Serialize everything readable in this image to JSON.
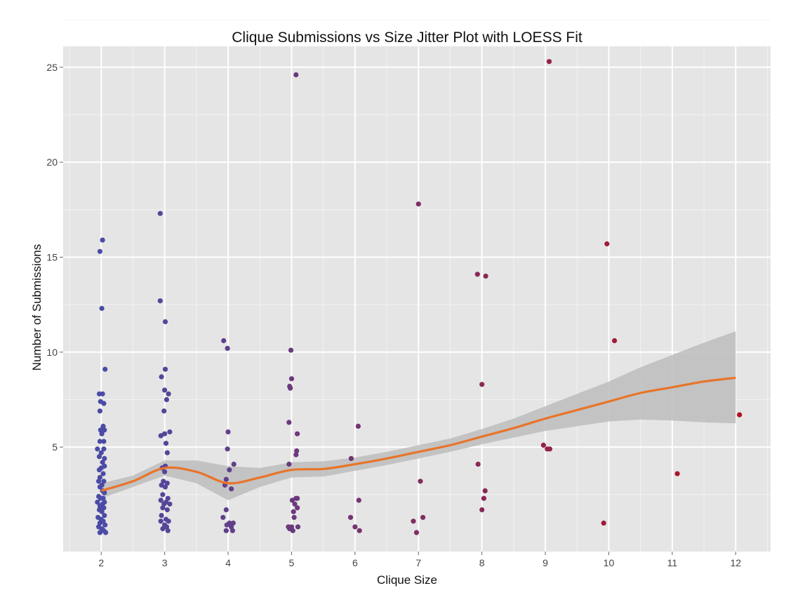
{
  "chart_data": {
    "type": "scatter",
    "title": "Clique Submissions vs Size Jitter Plot with LOESS Fit",
    "xlabel": "Clique Size",
    "ylabel": "Number of Submissions",
    "xlim": [
      1.4,
      12.55
    ],
    "ylim": [
      -0.5,
      26.1
    ],
    "x_ticks": [
      2,
      3,
      4,
      5,
      6,
      7,
      8,
      9,
      10,
      11,
      12
    ],
    "y_ticks": [
      5,
      10,
      15,
      20,
      25
    ],
    "grid": true,
    "legend": "none",
    "colors": {
      "panel": "#e5e5e5",
      "grid_major": "#ffffff",
      "grid_minor": "#f2f2f2",
      "point_low": "#4b4ba6",
      "point_high": "#b3101e",
      "fit_line": "#e8742a",
      "ribbon": "#bdbdbd"
    },
    "points": [
      [
        2.02,
        15.9
      ],
      [
        1.98,
        15.3
      ],
      [
        2.01,
        12.3
      ],
      [
        2.06,
        9.1
      ],
      [
        1.97,
        7.8
      ],
      [
        2.02,
        7.8
      ],
      [
        1.99,
        7.4
      ],
      [
        2.04,
        7.3
      ],
      [
        1.98,
        6.9
      ],
      [
        2.03,
        6.1
      ],
      [
        1.99,
        5.9
      ],
      [
        2.05,
        5.9
      ],
      [
        2.01,
        5.7
      ],
      [
        2.04,
        5.3
      ],
      [
        1.98,
        5.3
      ],
      [
        1.94,
        4.9
      ],
      [
        2.04,
        4.9
      ],
      [
        2.0,
        4.7
      ],
      [
        1.97,
        4.5
      ],
      [
        2.05,
        4.4
      ],
      [
        2.02,
        4.2
      ],
      [
        2.05,
        4.0
      ],
      [
        2.0,
        3.9
      ],
      [
        1.97,
        3.8
      ],
      [
        2.03,
        3.6
      ],
      [
        1.98,
        3.4
      ],
      [
        2.04,
        3.2
      ],
      [
        1.96,
        3.2
      ],
      [
        2.01,
        3.0
      ],
      [
        1.98,
        2.9
      ],
      [
        2.02,
        2.7
      ],
      [
        2.05,
        2.6
      ],
      [
        1.96,
        2.4
      ],
      [
        2.03,
        2.3
      ],
      [
        1.99,
        2.3
      ],
      [
        2.05,
        2.1
      ],
      [
        1.94,
        2.1
      ],
      [
        2.02,
        2.0
      ],
      [
        1.98,
        1.9
      ],
      [
        2.04,
        1.8
      ],
      [
        1.97,
        1.7
      ],
      [
        2.01,
        1.6
      ],
      [
        2.05,
        1.4
      ],
      [
        1.95,
        1.3
      ],
      [
        2.0,
        1.2
      ],
      [
        2.03,
        1.1
      ],
      [
        1.98,
        1.0
      ],
      [
        2.06,
        0.9
      ],
      [
        1.96,
        0.8
      ],
      [
        2.01,
        0.7
      ],
      [
        2.04,
        0.6
      ],
      [
        1.98,
        0.5
      ],
      [
        2.07,
        0.5
      ],
      [
        2.93,
        17.3
      ],
      [
        2.93,
        12.7
      ],
      [
        3.01,
        11.6
      ],
      [
        3.01,
        9.1
      ],
      [
        2.95,
        8.7
      ],
      [
        3.0,
        8.0
      ],
      [
        3.06,
        7.8
      ],
      [
        3.03,
        7.5
      ],
      [
        2.99,
        6.9
      ],
      [
        3.08,
        5.8
      ],
      [
        3.0,
        5.7
      ],
      [
        2.94,
        5.6
      ],
      [
        3.02,
        5.2
      ],
      [
        3.04,
        4.7
      ],
      [
        3.01,
        4.0
      ],
      [
        2.96,
        3.9
      ],
      [
        3.0,
        3.7
      ],
      [
        2.98,
        3.2
      ],
      [
        3.04,
        3.1
      ],
      [
        2.95,
        3.0
      ],
      [
        3.01,
        2.9
      ],
      [
        2.97,
        2.5
      ],
      [
        3.05,
        2.3
      ],
      [
        2.94,
        2.2
      ],
      [
        3.02,
        2.1
      ],
      [
        2.99,
        2.0
      ],
      [
        3.08,
        2.0
      ],
      [
        2.97,
        1.8
      ],
      [
        3.04,
        1.7
      ],
      [
        2.95,
        1.4
      ],
      [
        3.02,
        1.2
      ],
      [
        3.06,
        1.1
      ],
      [
        2.94,
        1.1
      ],
      [
        3.0,
        0.9
      ],
      [
        3.03,
        0.8
      ],
      [
        2.97,
        0.7
      ],
      [
        3.05,
        0.6
      ],
      [
        3.93,
        10.6
      ],
      [
        3.99,
        10.2
      ],
      [
        4.0,
        5.8
      ],
      [
        3.99,
        4.9
      ],
      [
        4.09,
        4.1
      ],
      [
        4.02,
        3.8
      ],
      [
        3.97,
        3.3
      ],
      [
        3.95,
        3.0
      ],
      [
        4.05,
        2.8
      ],
      [
        3.97,
        1.7
      ],
      [
        3.92,
        1.3
      ],
      [
        4.02,
        1.0
      ],
      [
        3.98,
        0.9
      ],
      [
        4.08,
        1.0
      ],
      [
        4.05,
        0.8
      ],
      [
        3.97,
        0.6
      ],
      [
        4.07,
        0.6
      ],
      [
        5.07,
        24.6
      ],
      [
        4.99,
        10.1
      ],
      [
        5.0,
        8.6
      ],
      [
        4.97,
        8.2
      ],
      [
        4.98,
        8.1
      ],
      [
        4.96,
        6.3
      ],
      [
        5.09,
        5.7
      ],
      [
        5.08,
        4.8
      ],
      [
        5.07,
        4.6
      ],
      [
        4.96,
        4.1
      ],
      [
        5.09,
        2.3
      ],
      [
        5.07,
        2.3
      ],
      [
        5.01,
        2.2
      ],
      [
        5.05,
        2.0
      ],
      [
        5.09,
        1.8
      ],
      [
        5.03,
        1.6
      ],
      [
        5.04,
        1.3
      ],
      [
        4.95,
        0.8
      ],
      [
        5.0,
        0.8
      ],
      [
        5.1,
        0.8
      ],
      [
        4.97,
        0.7
      ],
      [
        5.02,
        0.6
      ],
      [
        6.05,
        6.1
      ],
      [
        5.94,
        4.4
      ],
      [
        6.06,
        2.2
      ],
      [
        5.93,
        1.3
      ],
      [
        6.0,
        0.8
      ],
      [
        6.07,
        0.6
      ],
      [
        7.0,
        17.8
      ],
      [
        7.03,
        3.2
      ],
      [
        7.07,
        1.3
      ],
      [
        6.92,
        1.1
      ],
      [
        6.97,
        0.5
      ],
      [
        7.93,
        14.1
      ],
      [
        8.06,
        14.0
      ],
      [
        8.0,
        8.3
      ],
      [
        7.94,
        4.1
      ],
      [
        8.05,
        2.7
      ],
      [
        8.03,
        2.3
      ],
      [
        8.0,
        1.7
      ],
      [
        9.06,
        25.3
      ],
      [
        8.97,
        5.1
      ],
      [
        9.03,
        4.9
      ],
      [
        9.07,
        4.9
      ],
      [
        9.97,
        15.7
      ],
      [
        10.09,
        10.6
      ],
      [
        9.92,
        1.0
      ],
      [
        11.08,
        3.6
      ],
      [
        12.06,
        6.7
      ]
    ],
    "loess_fit": {
      "x": [
        2.0,
        2.5,
        3.0,
        3.5,
        4.0,
        4.5,
        5.0,
        5.5,
        6.0,
        6.5,
        7.0,
        7.5,
        8.0,
        8.5,
        9.0,
        9.5,
        10.0,
        10.5,
        11.0,
        11.5,
        12.0
      ],
      "y": [
        2.7,
        3.2,
        3.9,
        3.7,
        3.1,
        3.4,
        3.8,
        3.85,
        4.1,
        4.4,
        4.75,
        5.1,
        5.55,
        6.0,
        6.5,
        6.95,
        7.4,
        7.85,
        8.15,
        8.45,
        8.65
      ],
      "lower": [
        2.3,
        2.9,
        3.5,
        3.1,
        2.2,
        2.9,
        3.4,
        3.45,
        3.75,
        4.05,
        4.4,
        4.75,
        5.15,
        5.5,
        5.85,
        6.1,
        6.35,
        6.45,
        6.4,
        6.3,
        6.25
      ],
      "upper": [
        3.1,
        3.5,
        4.3,
        4.3,
        4.0,
        3.9,
        4.2,
        4.25,
        4.45,
        4.75,
        5.1,
        5.45,
        5.95,
        6.5,
        7.15,
        7.8,
        8.45,
        9.2,
        9.85,
        10.5,
        11.1
      ]
    }
  }
}
